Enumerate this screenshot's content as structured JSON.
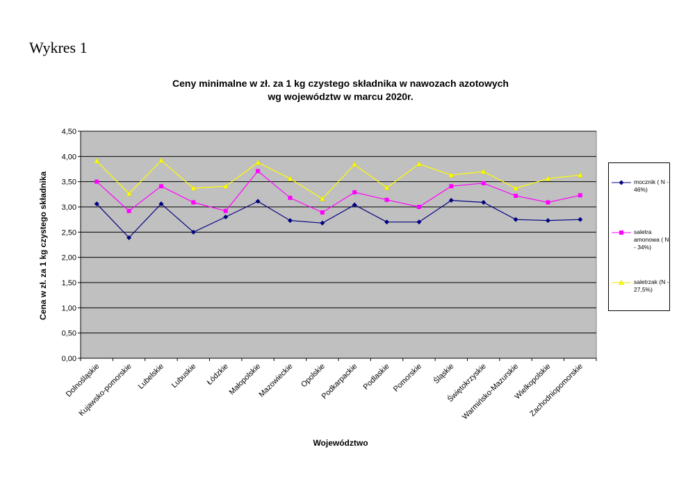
{
  "heading": "Wykres 1",
  "chart_data": {
    "type": "line",
    "title": "Ceny minimalne  w zł. za 1 kg czystego składnika w nawozach azotowych",
    "subtitle": "wg województw w marcu 2020r.",
    "xlabel": "Województwo",
    "ylabel": "Cena w zł. za 1 kg czystego składnika",
    "ylim": [
      0,
      4.5
    ],
    "yticks": [
      "0,00",
      "0,50",
      "1,00",
      "1,50",
      "2,00",
      "2,50",
      "3,00",
      "3,50",
      "4,00",
      "4,50"
    ],
    "grid": true,
    "legend_position": "right",
    "plot_background": "#c0c0c0",
    "categories": [
      "Dolnośląskie",
      "Kujawsko-pomorskie",
      "Lubelskie",
      "Lubuskie",
      "Łódzkie",
      "Małopolskie",
      "Mazowieckie",
      "Opolskie",
      "Podkarpackie",
      "Podlaskie",
      "Pomorskie",
      "Śląskie",
      "Świętokrzyskie",
      "Warmińsko-Mazurskie",
      "Wielkopolskie",
      "Zachodniopomorskie"
    ],
    "series": [
      {
        "name": "mocznik ( N - 46%)",
        "color": "#000080",
        "marker": "diamond",
        "values": [
          3.06,
          2.39,
          3.06,
          2.5,
          2.8,
          3.11,
          2.73,
          2.68,
          3.04,
          2.7,
          2.7,
          3.13,
          3.09,
          2.75,
          2.73,
          2.75
        ]
      },
      {
        "name": "saletra amonowa ( N - 34%)",
        "color": "#ff00ff",
        "marker": "square",
        "values": [
          3.5,
          2.92,
          3.41,
          3.09,
          2.92,
          3.71,
          3.18,
          2.89,
          3.29,
          3.14,
          3.0,
          3.41,
          3.47,
          3.22,
          3.09,
          3.23
        ]
      },
      {
        "name": "saletrzak (N - 27,5%)",
        "color": "#ffff00",
        "marker": "triangle",
        "values": [
          3.91,
          3.26,
          3.92,
          3.37,
          3.41,
          3.88,
          3.56,
          3.16,
          3.84,
          3.38,
          3.85,
          3.63,
          3.7,
          3.37,
          3.56,
          3.63
        ]
      }
    ]
  }
}
